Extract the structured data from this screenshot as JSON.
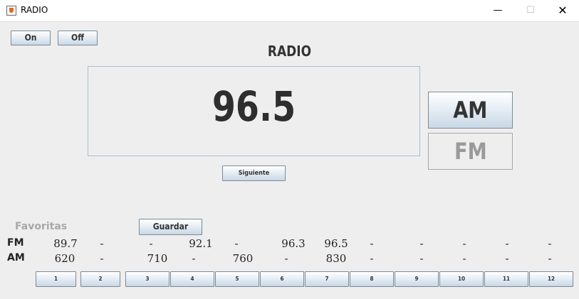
{
  "window": {
    "title": "RADIO",
    "controls": {
      "minimize": "—",
      "maximize": "☐",
      "close": "✕"
    }
  },
  "power": {
    "on_label": "On",
    "off_label": "Off"
  },
  "heading": "RADIO",
  "display": {
    "frequency": "96.5"
  },
  "next_label": "Siguiente",
  "bands": {
    "am_label": "AM",
    "fm_label": "FM",
    "selected": "AM"
  },
  "favorites": {
    "label": "Favoritas",
    "save_label": "Guardar",
    "fm_label": "FM",
    "am_label": "AM",
    "fm": [
      "89.7",
      "-",
      "-",
      "92.1",
      "-",
      "96.3",
      "96.5",
      "-",
      "-",
      "-",
      "-",
      "-"
    ],
    "am": [
      "620",
      "-",
      "710",
      "-",
      "760",
      "-",
      "830",
      "-",
      "-",
      "-",
      "-",
      "-"
    ],
    "slots": [
      "1",
      "2",
      "3",
      "4",
      "5",
      "6",
      "7",
      "8",
      "9",
      "10",
      "11",
      "12"
    ]
  },
  "colors": {
    "button_border": "#7a8a99",
    "display_border": "#a9bfcf",
    "disabled_text": "#9a9a9a",
    "favorites_label": "#a8a8a8"
  }
}
